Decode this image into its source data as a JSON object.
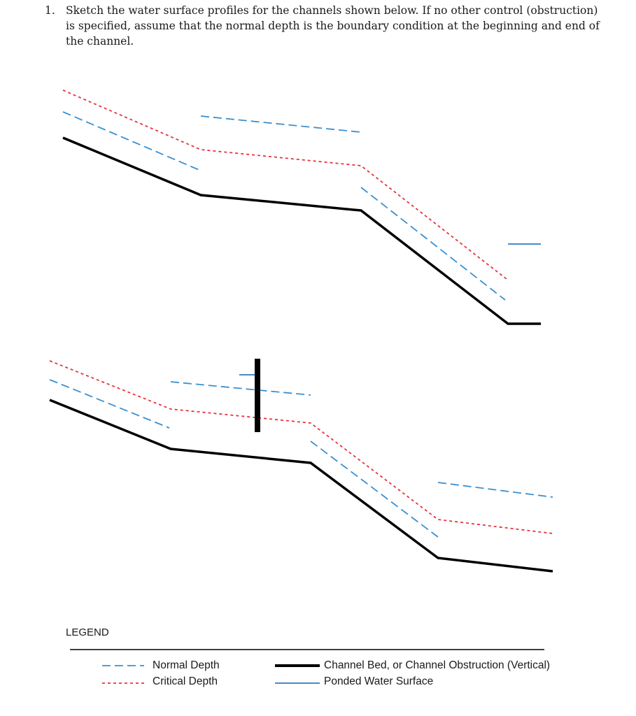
{
  "question": {
    "number": "1.",
    "text": "Sketch the water surface profiles for the channels shown below.  If no other control (obstruction) is specified, assume that the normal depth is the boundary condition at the beginning and end of the channel."
  },
  "legend": {
    "title": "LEGEND",
    "items": [
      {
        "label": "Normal Depth",
        "symbol": "blue-dashed-line"
      },
      {
        "label": "Critical Depth",
        "symbol": "red-dotted-line"
      },
      {
        "label": "Channel Bed, or Channel Obstruction (Vertical)",
        "symbol": "black-thick-line"
      },
      {
        "label": "Ponded Water Surface",
        "symbol": "blue-solid-line"
      }
    ]
  },
  "colors": {
    "normal_depth": "#3b8fd0",
    "critical_depth": "#e8323c",
    "channel_bed": "#000000",
    "ponded_water": "#2e7bbf"
  }
}
